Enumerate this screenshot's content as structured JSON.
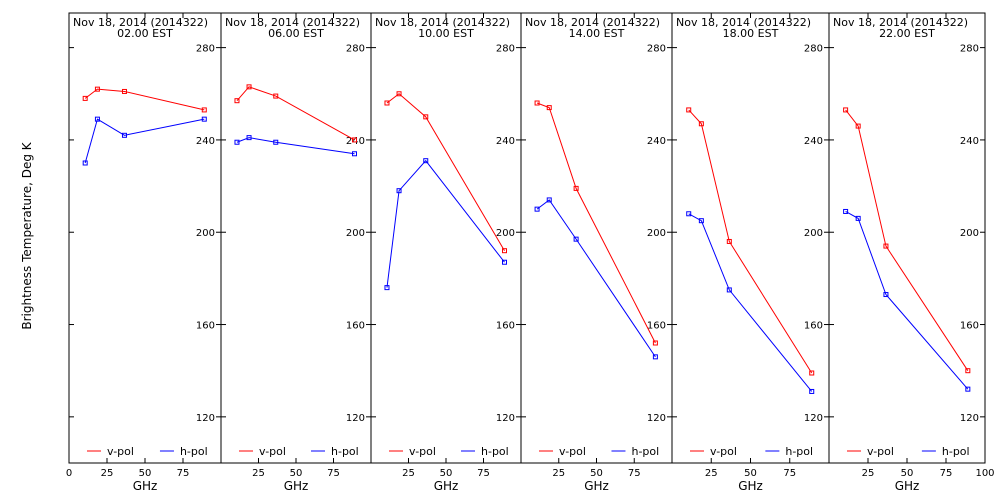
{
  "chart_data": {
    "type": "line",
    "ylabel": "Brightness Temperature, Deg K",
    "xlabel": "GHz",
    "ylim": [
      100,
      295
    ],
    "xlim": [
      0,
      100
    ],
    "yticks": [
      120,
      160,
      200,
      240,
      280
    ],
    "xticks": [
      0,
      25,
      50,
      75,
      100
    ],
    "legend_placement": "bottom",
    "colors": {
      "v-pol": "#ff0000",
      "h-pol": "#0000ff"
    },
    "panels": [
      {
        "title": "Nov 18, 2014 (2014322)",
        "subtitle": "02.00 EST",
        "series": [
          {
            "name": "v-pol",
            "x": [
              10.65,
              18.7,
              36.5,
              89
            ],
            "y": [
              258,
              262,
              261,
              253
            ]
          },
          {
            "name": "h-pol",
            "x": [
              10.65,
              18.7,
              36.5,
              89
            ],
            "y": [
              230,
              249,
              242,
              249
            ]
          }
        ]
      },
      {
        "title": "Nov 18, 2014 (2014322)",
        "subtitle": "06.00 EST",
        "series": [
          {
            "name": "v-pol",
            "x": [
              10.65,
              18.7,
              36.5,
              89
            ],
            "y": [
              257,
              263,
              259,
              240
            ]
          },
          {
            "name": "h-pol",
            "x": [
              10.65,
              18.7,
              36.5,
              89
            ],
            "y": [
              239,
              241,
              239,
              234
            ]
          }
        ]
      },
      {
        "title": "Nov 18, 2014 (2014322)",
        "subtitle": "10.00 EST",
        "series": [
          {
            "name": "v-pol",
            "x": [
              10.65,
              18.7,
              36.5,
              89
            ],
            "y": [
              256,
              260,
              250,
              192
            ]
          },
          {
            "name": "h-pol",
            "x": [
              10.65,
              18.7,
              36.5,
              89
            ],
            "y": [
              176,
              218,
              231,
              187
            ]
          }
        ]
      },
      {
        "title": "Nov 18, 2014 (2014322)",
        "subtitle": "14.00 EST",
        "series": [
          {
            "name": "v-pol",
            "x": [
              10.65,
              18.7,
              36.5,
              89
            ],
            "y": [
              256,
              254,
              219,
              152
            ]
          },
          {
            "name": "h-pol",
            "x": [
              10.65,
              18.7,
              36.5,
              89
            ],
            "y": [
              210,
              214,
              197,
              146
            ]
          }
        ]
      },
      {
        "title": "Nov 18, 2014 (2014322)",
        "subtitle": "18.00 EST",
        "series": [
          {
            "name": "v-pol",
            "x": [
              10.65,
              18.7,
              36.5,
              89
            ],
            "y": [
              253,
              247,
              196,
              139
            ]
          },
          {
            "name": "h-pol",
            "x": [
              10.65,
              18.7,
              36.5,
              89
            ],
            "y": [
              208,
              205,
              175,
              131
            ]
          }
        ]
      },
      {
        "title": "Nov 18, 2014 (2014322)",
        "subtitle": "22.00 EST",
        "series": [
          {
            "name": "v-pol",
            "x": [
              10.65,
              18.7,
              36.5,
              89
            ],
            "y": [
              253,
              246,
              194,
              140
            ]
          },
          {
            "name": "h-pol",
            "x": [
              10.65,
              18.7,
              36.5,
              89
            ],
            "y": [
              209,
              206,
              173,
              132
            ]
          }
        ]
      }
    ]
  }
}
